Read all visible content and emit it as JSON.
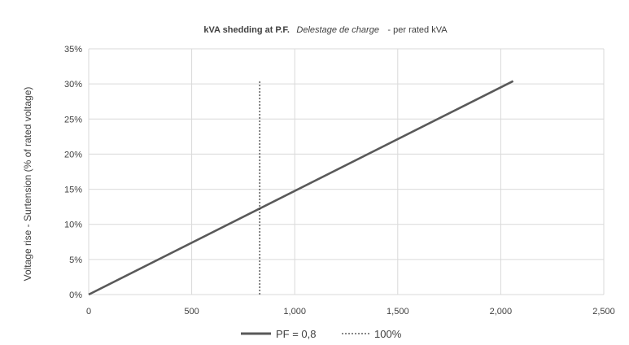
{
  "chart_data": {
    "type": "line",
    "title": {
      "bold": "kVA shedding at P.F.",
      "italic": "Delestage de charge",
      "rest": "- per rated kVA"
    },
    "xlabel": "",
    "ylabel": "Voltage rise - Surtension  (% of rated voltage)",
    "xlim": [
      0,
      2500
    ],
    "ylim": [
      0,
      35
    ],
    "x_ticks": [
      {
        "value": 0,
        "label": "0"
      },
      {
        "value": 500,
        "label": "500"
      },
      {
        "value": 1000,
        "label": "1,000"
      },
      {
        "value": 1500,
        "label": "1,500"
      },
      {
        "value": 2000,
        "label": "2,000"
      },
      {
        "value": 2500,
        "label": "2,500"
      }
    ],
    "y_ticks": [
      {
        "value": 0,
        "label": "0%"
      },
      {
        "value": 5,
        "label": "5%"
      },
      {
        "value": 10,
        "label": "10%"
      },
      {
        "value": 15,
        "label": "15%"
      },
      {
        "value": 20,
        "label": "20%"
      },
      {
        "value": 25,
        "label": "25%"
      },
      {
        "value": 30,
        "label": "30%"
      },
      {
        "value": 35,
        "label": "35%"
      }
    ],
    "grid": true,
    "legend_position": "bottom",
    "series": [
      {
        "name": "PF = 0,8",
        "style": "solid",
        "color": "#595959",
        "x": [
          0,
          2060
        ],
        "y": [
          0,
          30.4
        ]
      },
      {
        "name": "100%",
        "style": "dashed",
        "color": "#404040",
        "x": [
          830,
          830
        ],
        "y": [
          0,
          30.5
        ]
      }
    ]
  }
}
